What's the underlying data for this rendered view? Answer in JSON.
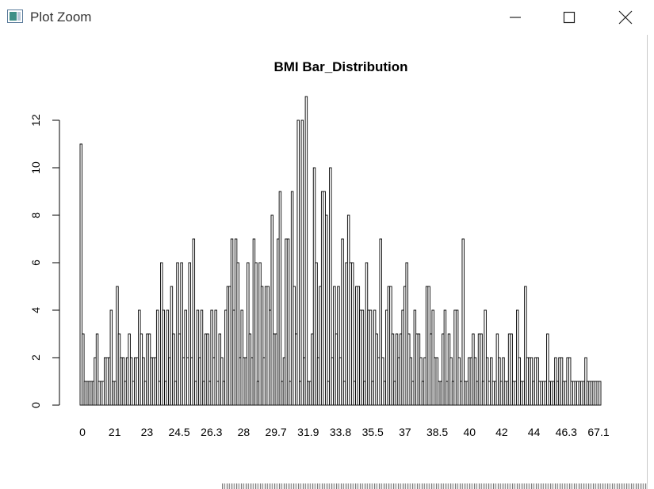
{
  "window": {
    "title": "Plot Zoom",
    "icons": {
      "app": "plot-app-icon",
      "minimize": "minimize-icon",
      "maximize": "maximize-icon",
      "close": "close-icon"
    }
  },
  "chart_data": {
    "type": "bar",
    "title": "BMI Bar_Distribution",
    "xlabel": "",
    "ylabel": "",
    "ylim": [
      0,
      13
    ],
    "yticks": [
      0,
      2,
      4,
      6,
      8,
      10,
      12
    ],
    "xtick_labels": [
      "0",
      "21",
      "23",
      "24.5",
      "26.3",
      "28",
      "29.7",
      "31.9",
      "33.8",
      "35.5",
      "37",
      "38.5",
      "40",
      "42",
      "44",
      "46.3",
      "67.1"
    ],
    "grid": false,
    "legend": "none",
    "bar_fill": "#ffffff",
    "bar_stroke": "#000000",
    "values": [
      11,
      3,
      1,
      1,
      1,
      1,
      1,
      2,
      3,
      1,
      1,
      1,
      2,
      2,
      2,
      4,
      1,
      1,
      5,
      3,
      2,
      2,
      1,
      2,
      3,
      2,
      1,
      2,
      2,
      4,
      3,
      2,
      1,
      3,
      3,
      2,
      2,
      2,
      4,
      1,
      6,
      4,
      1,
      4,
      2,
      5,
      3,
      1,
      6,
      3,
      6,
      2,
      4,
      2,
      6,
      2,
      7,
      1,
      4,
      2,
      4,
      1,
      3,
      3,
      1,
      4,
      2,
      4,
      1,
      3,
      2,
      1,
      4,
      5,
      5,
      7,
      4,
      7,
      6,
      2,
      4,
      2,
      2,
      6,
      3,
      2,
      7,
      6,
      1,
      6,
      5,
      2,
      5,
      5,
      4,
      8,
      3,
      3,
      7,
      9,
      1,
      2,
      7,
      7,
      1,
      9,
      5,
      3,
      12,
      1,
      12,
      2,
      13,
      1,
      1,
      3,
      10,
      6,
      2,
      5,
      9,
      9,
      8,
      1,
      10,
      2,
      5,
      3,
      5,
      2,
      7,
      1,
      6,
      8,
      6,
      6,
      1,
      5,
      5,
      4,
      4,
      1,
      6,
      4,
      4,
      1,
      4,
      3,
      2,
      7,
      2,
      1,
      4,
      5,
      5,
      3,
      1,
      3,
      2,
      3,
      4,
      5,
      6,
      3,
      2,
      1,
      4,
      3,
      3,
      2,
      1,
      2,
      5,
      5,
      3,
      4,
      2,
      2,
      1,
      1,
      3,
      4,
      1,
      3,
      2,
      1,
      4,
      4,
      2,
      1,
      7,
      1,
      1,
      2,
      2,
      3,
      2,
      1,
      3,
      3,
      1,
      4,
      2,
      1,
      2,
      1,
      1,
      3,
      2,
      1,
      2,
      1,
      1,
      3,
      3,
      1,
      1,
      4,
      2,
      1,
      1,
      5,
      2,
      2,
      2,
      1,
      2,
      2,
      1,
      1,
      1,
      1,
      3,
      1,
      1,
      1,
      2,
      1,
      2,
      2,
      1,
      1,
      2,
      2,
      1,
      1,
      1,
      1,
      1,
      1,
      1,
      2,
      1,
      1,
      1,
      1,
      1,
      1,
      1
    ]
  }
}
